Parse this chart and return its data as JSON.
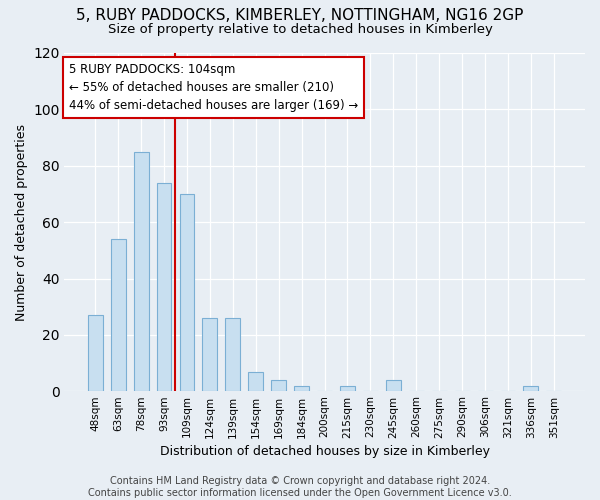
{
  "title": "5, RUBY PADDOCKS, KIMBERLEY, NOTTINGHAM, NG16 2GP",
  "subtitle": "Size of property relative to detached houses in Kimberley",
  "xlabel": "Distribution of detached houses by size in Kimberley",
  "ylabel": "Number of detached properties",
  "categories": [
    "48sqm",
    "63sqm",
    "78sqm",
    "93sqm",
    "109sqm",
    "124sqm",
    "139sqm",
    "154sqm",
    "169sqm",
    "184sqm",
    "200sqm",
    "215sqm",
    "230sqm",
    "245sqm",
    "260sqm",
    "275sqm",
    "290sqm",
    "306sqm",
    "321sqm",
    "336sqm",
    "351sqm"
  ],
  "values": [
    27,
    54,
    85,
    74,
    70,
    26,
    26,
    7,
    4,
    2,
    0,
    2,
    0,
    4,
    0,
    0,
    0,
    0,
    0,
    2,
    0
  ],
  "bar_color": "#c8dff0",
  "bar_edge_color": "#7bafd4",
  "vline_color": "#cc0000",
  "vline_x": 3.5,
  "annotation_text": "5 RUBY PADDOCKS: 104sqm\n← 55% of detached houses are smaller (210)\n44% of semi-detached houses are larger (169) →",
  "annotation_box_color": "#ffffff",
  "annotation_box_edge_color": "#cc0000",
  "ylim": [
    0,
    120
  ],
  "yticks": [
    0,
    20,
    40,
    60,
    80,
    100,
    120
  ],
  "footer_text": "Contains HM Land Registry data © Crown copyright and database right 2024.\nContains public sector information licensed under the Open Government Licence v3.0.",
  "background_color": "#e8eef4",
  "plot_background_color": "#e8eef4",
  "grid_color": "#ffffff",
  "title_fontsize": 11,
  "subtitle_fontsize": 9.5,
  "annotation_fontsize": 8.5,
  "axis_label_fontsize": 9,
  "tick_fontsize": 7.5,
  "footer_fontsize": 7,
  "bar_width": 0.65
}
